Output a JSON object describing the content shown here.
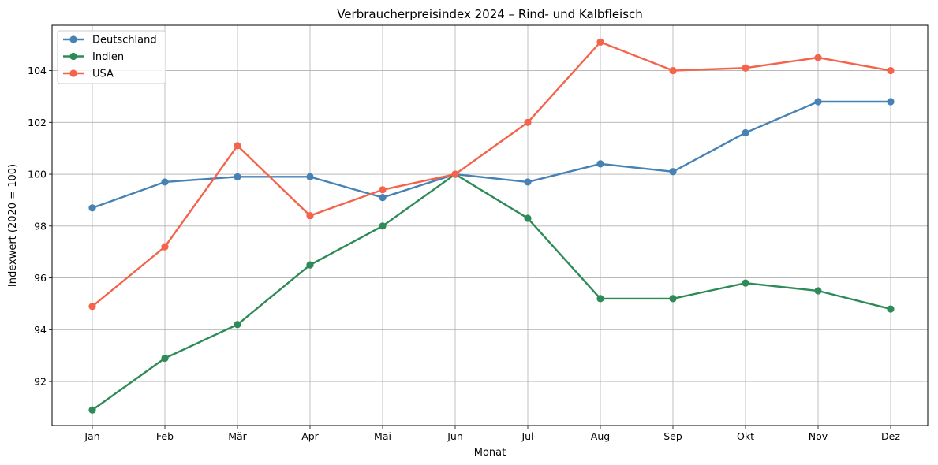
{
  "chart_data": {
    "type": "line",
    "title": "Verbraucherpreisindex 2024 – Rind- und Kalbfleisch",
    "xlabel": "Monat",
    "ylabel": "Indexwert (2020 = 100)",
    "categories": [
      "Jan",
      "Feb",
      "Mär",
      "Apr",
      "Mai",
      "Jun",
      "Jul",
      "Aug",
      "Sep",
      "Okt",
      "Nov",
      "Dez"
    ],
    "ylim": [
      90.3,
      105.75
    ],
    "yticks": [
      92,
      94,
      96,
      98,
      100,
      102,
      104
    ],
    "grid": true,
    "legend_position": "top-left",
    "series": [
      {
        "name": "Deutschland",
        "color": "#4682b4",
        "values": [
          98.7,
          99.7,
          99.9,
          99.9,
          99.1,
          100.0,
          99.7,
          100.4,
          100.1,
          101.6,
          102.8,
          102.8
        ]
      },
      {
        "name": "Indien",
        "color": "#2e8b57",
        "values": [
          90.9,
          92.9,
          94.2,
          96.5,
          98.0,
          100.0,
          98.3,
          95.2,
          95.2,
          95.8,
          95.5,
          94.8
        ]
      },
      {
        "name": "USA",
        "color": "#f4634a",
        "values": [
          94.9,
          97.2,
          101.1,
          98.4,
          99.4,
          100.0,
          102.0,
          105.1,
          104.0,
          104.1,
          104.5,
          104.0
        ]
      }
    ]
  }
}
